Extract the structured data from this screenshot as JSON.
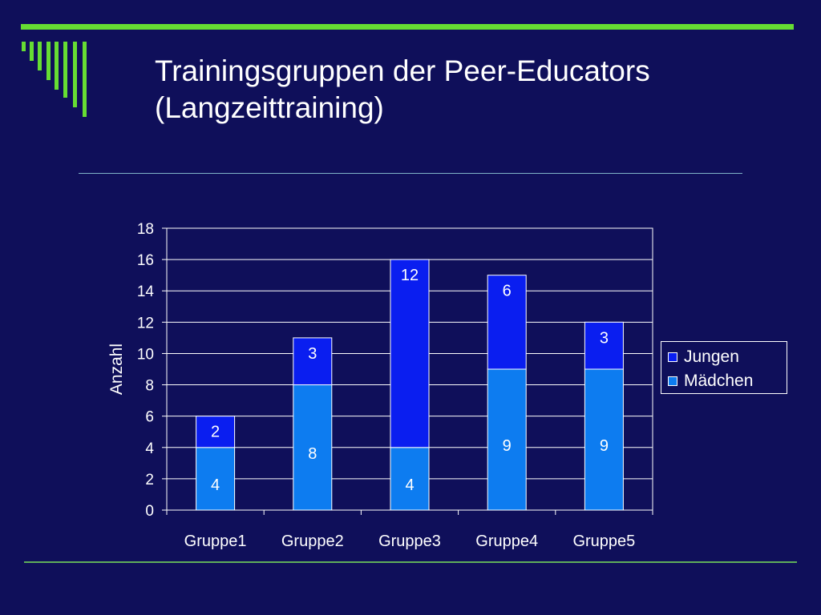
{
  "slide": {
    "title_line1": "Trainingsgruppen der Peer-Educators",
    "title_line2": "(Langzeittraining)"
  },
  "colors": {
    "background": "#0f0f5a",
    "accent_green": "#66dd33",
    "jungen": "#0a1ef0",
    "maedchen": "#0d7cf0",
    "text": "#ffffff"
  },
  "chart_data": {
    "type": "bar",
    "stacked": true,
    "categories": [
      "Gruppe1",
      "Gruppe2",
      "Gruppe3",
      "Gruppe4",
      "Gruppe5"
    ],
    "series": [
      {
        "name": "Mädchen",
        "values": [
          4,
          8,
          4,
          9,
          9
        ]
      },
      {
        "name": "Jungen",
        "values": [
          2,
          3,
          12,
          6,
          3
        ]
      }
    ],
    "ylabel": "Anzahl",
    "xlabel": "",
    "ylim": [
      0,
      18
    ],
    "yticks": [
      0,
      2,
      4,
      6,
      8,
      10,
      12,
      14,
      16,
      18
    ],
    "grid": true,
    "legend_position": "right",
    "data_labels": true
  }
}
